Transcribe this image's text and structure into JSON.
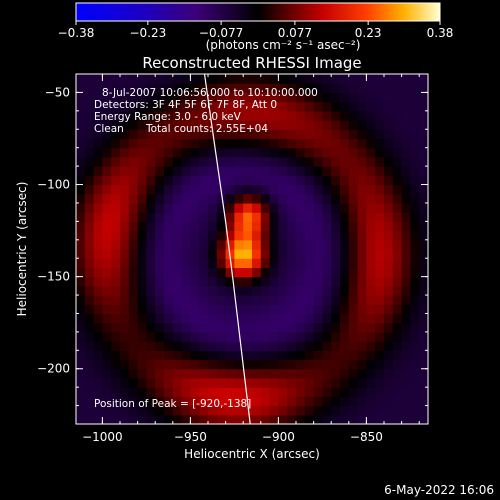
{
  "chart_data": {
    "type": "heatmap",
    "title": "Reconstructed RHESSI Image",
    "xlabel": "Heliocentric X (arcsec)",
    "ylabel": "Heliocentric Y (arcsec)",
    "xlim": [
      -1015,
      -815
    ],
    "ylim": [
      -230,
      -40
    ],
    "x_ticks": [
      -1000,
      -950,
      -900,
      -850
    ],
    "y_ticks": [
      -200,
      -150,
      -100,
      -50
    ],
    "x_tick_labels": [
      "−1000",
      "−950",
      "−900",
      "−850"
    ],
    "y_tick_labels": [
      "−200",
      "−150",
      "−100",
      "−50"
    ],
    "colorbar": {
      "min": -0.38,
      "max": 0.38,
      "ticks": [
        -0.38,
        -0.23,
        -0.077,
        0.077,
        0.23,
        0.38
      ],
      "tick_labels": [
        "−0.38",
        "−0.23",
        "−0.077",
        "0.077",
        "0.23",
        "0.38"
      ],
      "units": "(photons cm⁻² s⁻¹ asec⁻²)"
    },
    "annotations": {
      "time_range": "8-Jul-2007 10:06:56.000 to 10:10:00.000",
      "detectors": "Detectors: 3F 4F 5F 6F 7F 8F, Att 0",
      "energy_range": "Energy Range: 3.0 - 6.0 keV",
      "clean": "Clean",
      "total_counts": "Total counts: 2.55E+04",
      "peak": "Position of Peak = [-920,-138]"
    },
    "peak_position": [
      -920,
      -138
    ],
    "limb_curve": [
      [
        -942,
        -40
      ],
      [
        -936,
        -80
      ],
      [
        -930,
        -120
      ],
      [
        -926,
        -150
      ],
      [
        -921,
        -190
      ],
      [
        -916,
        -230
      ]
    ],
    "sources": [
      {
        "name": "main-peak",
        "x": -920,
        "y": -138,
        "value": 0.38
      },
      {
        "name": "upper-lobe",
        "x": -917,
        "y": -117,
        "value": 0.3
      },
      {
        "name": "red-ring",
        "radius": 78,
        "value": 0.16
      },
      {
        "name": "inner-dark-ring",
        "radius": 45,
        "value": -0.12
      },
      {
        "name": "outer-dark-ring",
        "radius": 130,
        "value": -0.06
      }
    ]
  },
  "footer": {
    "date": "6-May-2022 16:06"
  }
}
